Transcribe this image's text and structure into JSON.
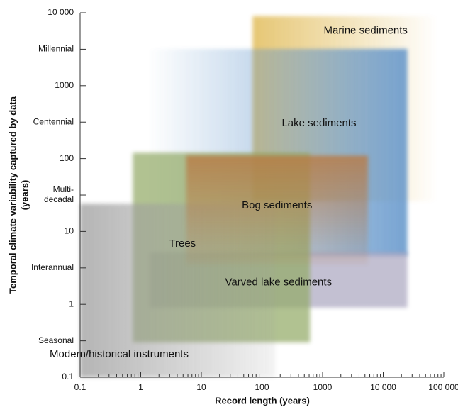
{
  "chart_data": {
    "type": "range",
    "xlabel": "Record length (years)",
    "ylabel": [
      "Temporal climate variability captured by data",
      "(years)"
    ],
    "xscale": "log",
    "yscale": "log",
    "xlim": [
      0.1,
      100000
    ],
    "ylim": [
      0.1,
      10000
    ],
    "xticks": [
      0.1,
      1,
      10,
      100,
      1000,
      {
        "value": 10000,
        "label": "10 000"
      },
      {
        "value": 100000,
        "label": "100 000"
      }
    ],
    "yticks": [
      0.1,
      {
        "value": 0.316,
        "label": "Seasonal"
      },
      1,
      {
        "value": 3.16,
        "label": "Interannual"
      },
      10,
      {
        "value": 31.6,
        "label": "Multi-\ndecadal"
      },
      100,
      {
        "value": 316,
        "label": "Centennial"
      },
      1000,
      {
        "value": 3162,
        "label": "Millennial"
      },
      {
        "value": 10000,
        "label": "10 000"
      }
    ],
    "series": [
      {
        "name": "Marine sediments",
        "color": "#e2bd5c",
        "x": [
          70,
          80000
        ],
        "y": [
          26,
          9000
        ]
      },
      {
        "name": "Lake sediments",
        "color": "#5f93c9",
        "x": [
          1.3,
          25000
        ],
        "y": [
          4.6,
          3200
        ]
      },
      {
        "name": "Varved lake sediments",
        "color": "#a7a2bd",
        "x": [
          1.4,
          25000
        ],
        "y": [
          0.9,
          5.2
        ]
      },
      {
        "name": "Trees",
        "color": "#93aa68",
        "x": [
          0.74,
          620
        ],
        "y": [
          0.3,
          120
        ]
      },
      {
        "name": "Modern/historical instruments",
        "color": "#9e9e9e",
        "x": [
          0.1,
          165
        ],
        "y": [
          0.1,
          24
        ]
      },
      {
        "name": "Bog sediments",
        "color": "#b97a44",
        "x": [
          5.6,
          5600
        ],
        "y": [
          3.5,
          110
        ]
      }
    ]
  }
}
